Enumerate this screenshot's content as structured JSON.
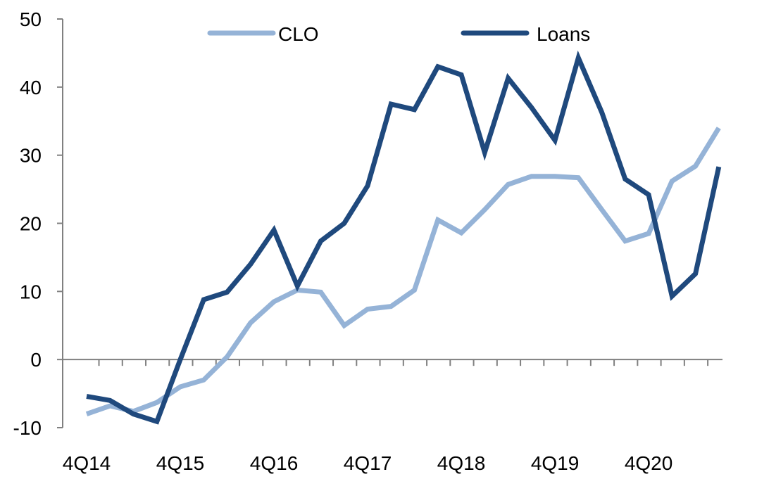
{
  "chart_data": {
    "type": "line",
    "title": "",
    "xlabel": "",
    "ylabel": "",
    "ylim": [
      -10,
      50
    ],
    "yticks": [
      -10,
      0,
      10,
      20,
      30,
      40,
      50
    ],
    "x_tick_labels": [
      "4Q14",
      "4Q15",
      "4Q16",
      "4Q17",
      "4Q18",
      "4Q19",
      "4Q20"
    ],
    "grid": false,
    "legend_position": "top",
    "categories": [
      "4Q14",
      "1Q15",
      "2Q15",
      "3Q15",
      "4Q15",
      "1Q16",
      "2Q16",
      "3Q16",
      "4Q16",
      "1Q17",
      "2Q17",
      "3Q17",
      "4Q17",
      "1Q18",
      "2Q18",
      "3Q18",
      "4Q18",
      "1Q19",
      "2Q19",
      "3Q19",
      "4Q19",
      "1Q20",
      "2Q20",
      "3Q20",
      "4Q20",
      "1Q21",
      "2Q21",
      "3Q21"
    ],
    "series": [
      {
        "name": "CLO",
        "color": "#95B3D7",
        "values": [
          -8.0,
          -6.8,
          -7.6,
          -6.3,
          -4.0,
          -3.0,
          0.4,
          5.4,
          8.5,
          10.2,
          9.9,
          5.0,
          7.4,
          7.8,
          10.2,
          20.5,
          18.6,
          22.0,
          25.7,
          26.9,
          26.9,
          26.7,
          22.0,
          17.4,
          18.5,
          26.2,
          28.4,
          34.0
        ]
      },
      {
        "name": "Loans",
        "color": "#1F497D",
        "values": [
          -5.4,
          -6.0,
          -8.0,
          -9.1,
          0.0,
          8.8,
          9.9,
          14.0,
          19.0,
          10.8,
          17.4,
          20.0,
          25.5,
          37.5,
          36.7,
          43.0,
          41.8,
          30.4,
          41.3,
          37.0,
          32.2,
          44.3,
          36.3,
          26.5,
          24.2,
          9.3,
          12.6,
          28.3
        ]
      }
    ]
  }
}
